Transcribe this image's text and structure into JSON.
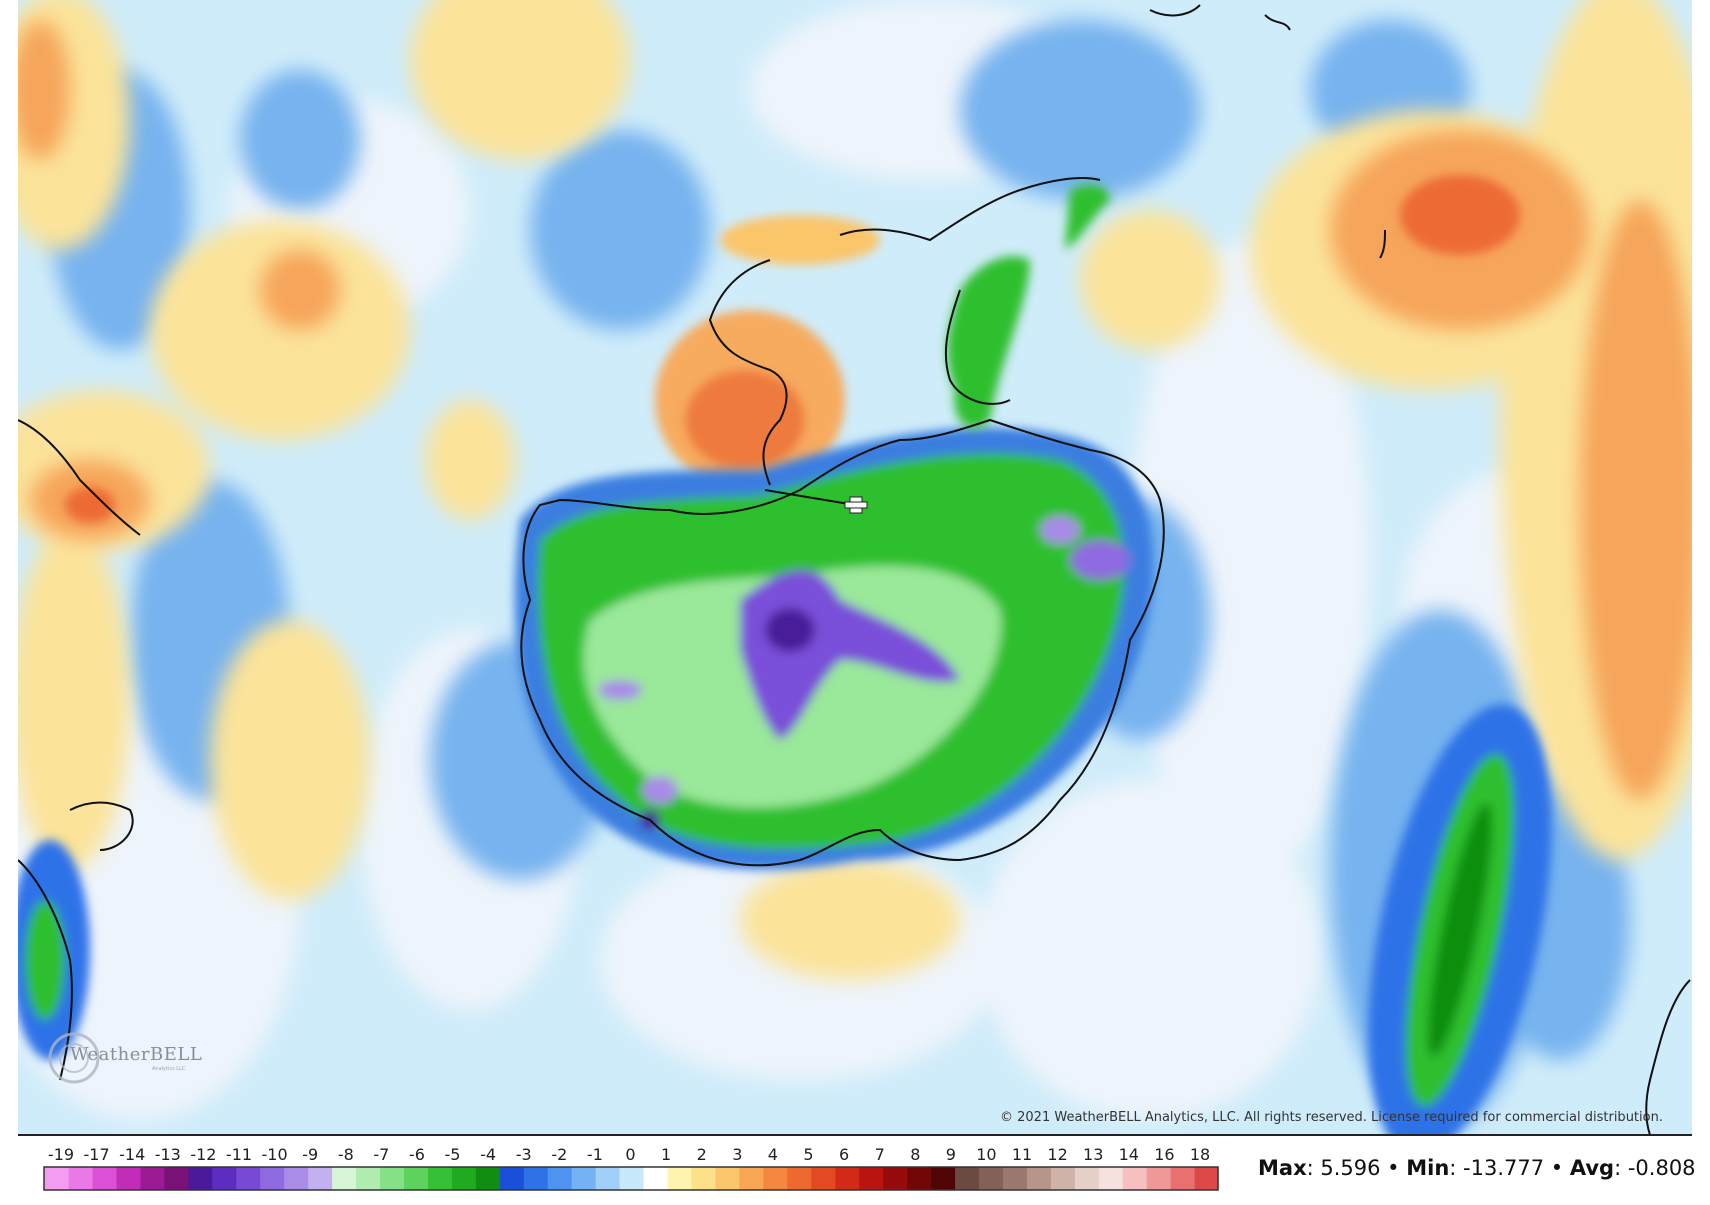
{
  "copyright": "© 2021 WeatherBELL Analytics, LLC. All rights reserved. License required for commercial distribution.",
  "logo": {
    "text": "WeatherBELL",
    "subtext": "Analytics LLC"
  },
  "stats": {
    "max_label": "Max",
    "max_value": ": 5.596",
    "sep1": " • ",
    "min_label": "Min",
    "min_value": ": -13.777",
    "sep2": " • ",
    "avg_label": "Avg",
    "avg_value": ": -0.808"
  },
  "colorbar": {
    "labels": [
      "-19",
      "-17",
      "-14",
      "-13",
      "-12",
      "-11",
      "-10",
      "-9",
      "-8",
      "-7",
      "-6",
      "-5",
      "-4",
      "-3",
      "-2",
      "-1",
      "0",
      "1",
      "2",
      "3",
      "4",
      "5",
      "6",
      "7",
      "8",
      "9",
      "10",
      "11",
      "12",
      "13",
      "14",
      "16",
      "18"
    ],
    "colors": [
      "#f49cf0",
      "#ea78e6",
      "#db50d6",
      "#c12db9",
      "#9c1a93",
      "#7a1176",
      "#4a1a9a",
      "#5d2cc0",
      "#7749d4",
      "#8f6ae0",
      "#a98be8",
      "#c3b0f0",
      "#d6f5d6",
      "#b0ecb0",
      "#86e086",
      "#5dd35d",
      "#36c036",
      "#1faa1f",
      "#118e11",
      "#1a4fd8",
      "#2f72e8",
      "#4f93f0",
      "#74b2f5",
      "#a0cff8",
      "#c8e8fb",
      "#ffffff",
      "#fff3b0",
      "#fde08a",
      "#fbc56b",
      "#f8a653",
      "#f4873f",
      "#ee6930",
      "#e44a22",
      "#d32a18",
      "#b81410",
      "#960b0b",
      "#720707",
      "#4f0505",
      "#6b4a44",
      "#836058",
      "#9b7970",
      "#b6958a",
      "#cfb2a8",
      "#e6d0c8",
      "#f5e1dd",
      "#f6c0c0",
      "#f09898",
      "#e87070",
      "#dd4848"
    ],
    "legend_colors_note": "temperature anomaly scale"
  },
  "colors": {
    "warm": "#f6a04f",
    "hot": "#ec6a34",
    "cold_deep": "#2c6fd6",
    "cold": "#6fa8ee",
    "cool": "#a8dbf6",
    "neutral": "#f4f7fc",
    "green": "#2fbf2f",
    "purple": "#7a4fd9",
    "coast": "#111111"
  }
}
